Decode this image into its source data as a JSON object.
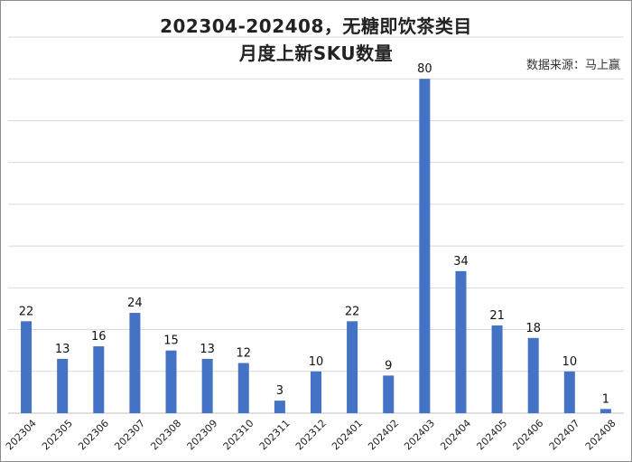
{
  "header": {
    "title_line1": "202304-202408，无糖即饮茶类目",
    "title_line2": "月度上新SKU数量",
    "source": "数据来源：马上赢"
  },
  "colors": {
    "bar": "#4472C4",
    "grid": "#d9d9d9",
    "axis": "#bfbfbf"
  },
  "chart_data": {
    "type": "bar",
    "title": "202304-202408，无糖即饮茶类目 月度上新SKU数量",
    "xlabel": "",
    "ylabel": "",
    "ylim": [
      0,
      90
    ],
    "grid": true,
    "categories": [
      "202304",
      "202305",
      "202306",
      "202307",
      "202308",
      "202309",
      "202310",
      "202311",
      "202312",
      "202401",
      "202402",
      "202403",
      "202404",
      "202405",
      "202406",
      "202407",
      "202408"
    ],
    "values": [
      22,
      13,
      16,
      24,
      15,
      13,
      12,
      3,
      10,
      22,
      9,
      80,
      34,
      21,
      18,
      10,
      1
    ]
  }
}
